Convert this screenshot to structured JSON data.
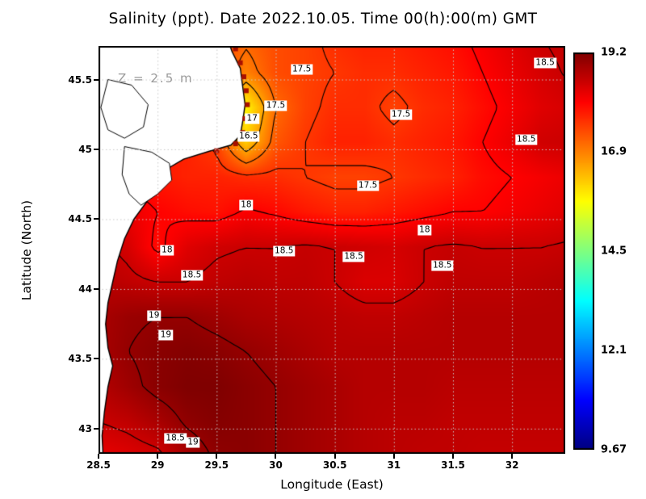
{
  "chart_data": {
    "type": "heatmap",
    "title": "Salinity (ppt). Date 2022.10.05. Time 00(h):00(m) GMT",
    "units": "ppt",
    "annotation": "Z = 2.5 m",
    "xlabel": "Longitude (East)",
    "ylabel": "Latitude (North)",
    "x_ticks": [
      28.5,
      29,
      29.5,
      30,
      30.5,
      31,
      31.5,
      32
    ],
    "y_ticks": [
      43,
      43.5,
      44,
      44.5,
      45,
      45.5
    ],
    "x_range": [
      28.5,
      32.45
    ],
    "y_range": [
      42.82,
      45.74
    ],
    "grid_on": true,
    "colorbar": {
      "min": 9.67,
      "max": 19.2,
      "labels": [
        "19.2",
        "16.9",
        "14.5",
        "12.1",
        "9.67"
      ],
      "colormap": "jet"
    },
    "lon": [
      28.5,
      28.75,
      29.0,
      29.25,
      29.5,
      29.75,
      30.0,
      30.25,
      30.5,
      30.75,
      31.0,
      31.25,
      31.5,
      31.75,
      32.0,
      32.25,
      32.5
    ],
    "lat": [
      45.8,
      45.55,
      45.3,
      45.05,
      44.8,
      44.55,
      44.3,
      44.05,
      43.8,
      43.55,
      43.3,
      43.05,
      42.8
    ],
    "salinity": [
      [
        17.6,
        17.6,
        17.6,
        17.5,
        17.4,
        17.1,
        17.3,
        17.4,
        17.6,
        17.7,
        17.7,
        17.8,
        17.9,
        18.1,
        18.3,
        18.5,
        18.6
      ],
      [
        17.6,
        17.6,
        17.6,
        17.5,
        17.3,
        16.8,
        17.3,
        17.4,
        17.5,
        17.6,
        17.6,
        17.7,
        17.8,
        18.0,
        18.2,
        18.4,
        18.55
      ],
      [
        17.7,
        17.7,
        17.7,
        17.6,
        17.2,
        15.7,
        17.0,
        17.4,
        17.6,
        17.6,
        17.4,
        17.6,
        17.7,
        17.9,
        18.1,
        18.3,
        18.4
      ],
      [
        17.8,
        17.8,
        17.8,
        17.7,
        17.4,
        16.1,
        17.2,
        17.5,
        17.7,
        17.7,
        17.6,
        17.7,
        17.8,
        18.0,
        18.2,
        18.45,
        18.5
      ],
      [
        18.0,
        17.9,
        17.8,
        17.7,
        17.7,
        17.6,
        17.6,
        17.5,
        17.4,
        17.4,
        17.5,
        17.6,
        17.7,
        17.9,
        18.0,
        18.1,
        18.2
      ],
      [
        18.3,
        18.2,
        18.0,
        17.9,
        17.85,
        18.05,
        17.95,
        17.8,
        17.7,
        17.7,
        17.8,
        17.9,
        18.0,
        18.0,
        18.1,
        18.2,
        18.3
      ],
      [
        18.6,
        18.4,
        17.9,
        18.3,
        18.45,
        18.5,
        18.5,
        18.55,
        18.5,
        18.45,
        18.4,
        18.5,
        18.55,
        18.5,
        18.5,
        18.5,
        18.55
      ],
      [
        18.7,
        18.6,
        18.5,
        18.5,
        18.6,
        18.65,
        18.6,
        18.6,
        18.5,
        18.35,
        18.35,
        18.5,
        18.6,
        18.6,
        18.6,
        18.65,
        18.7
      ],
      [
        18.8,
        18.95,
        19.0,
        19.0,
        18.9,
        18.8,
        18.75,
        18.7,
        18.65,
        18.6,
        18.6,
        18.65,
        18.7,
        18.7,
        18.7,
        18.7,
        18.7
      ],
      [
        18.8,
        19.0,
        19.1,
        19.15,
        19.1,
        19.0,
        18.9,
        18.8,
        18.7,
        18.7,
        18.7,
        18.7,
        18.7,
        18.7,
        18.7,
        18.7,
        18.7
      ],
      [
        18.7,
        18.9,
        19.1,
        19.2,
        19.2,
        19.1,
        19.0,
        18.9,
        18.8,
        18.7,
        18.7,
        18.7,
        18.65,
        18.65,
        18.65,
        18.65,
        18.65
      ],
      [
        18.5,
        18.6,
        18.8,
        19.05,
        19.15,
        19.1,
        19.0,
        18.9,
        18.8,
        18.7,
        18.65,
        18.65,
        18.6,
        18.6,
        18.6,
        18.6,
        18.6
      ],
      [
        18.2,
        18.3,
        18.4,
        18.8,
        19.05,
        19.1,
        19.0,
        18.9,
        18.8,
        18.7,
        18.65,
        18.6,
        18.6,
        18.55,
        18.55,
        18.55,
        18.55
      ]
    ],
    "contour_levels": [
      16.5,
      17,
      17.5,
      18,
      18.5,
      19
    ],
    "contour_labels": [
      {
        "lon": 30.22,
        "lat": 45.57,
        "text": "17.5"
      },
      {
        "lon": 32.28,
        "lat": 45.62,
        "text": "18.5"
      },
      {
        "lon": 30.0,
        "lat": 45.31,
        "text": "17.5"
      },
      {
        "lon": 29.8,
        "lat": 45.22,
        "text": "17"
      },
      {
        "lon": 31.06,
        "lat": 45.25,
        "text": "17.5"
      },
      {
        "lon": 29.77,
        "lat": 45.09,
        "text": "16.5"
      },
      {
        "lon": 32.12,
        "lat": 45.07,
        "text": "18.5"
      },
      {
        "lon": 30.78,
        "lat": 44.74,
        "text": "17.5"
      },
      {
        "lon": 29.75,
        "lat": 44.6,
        "text": "18"
      },
      {
        "lon": 31.26,
        "lat": 44.42,
        "text": "18"
      },
      {
        "lon": 29.08,
        "lat": 44.28,
        "text": "18"
      },
      {
        "lon": 30.07,
        "lat": 44.27,
        "text": "18.5"
      },
      {
        "lon": 30.66,
        "lat": 44.23,
        "text": "18.5"
      },
      {
        "lon": 31.41,
        "lat": 44.17,
        "text": "18.5"
      },
      {
        "lon": 29.29,
        "lat": 44.1,
        "text": "18.5"
      },
      {
        "lon": 28.97,
        "lat": 43.81,
        "text": "19"
      },
      {
        "lon": 29.07,
        "lat": 43.67,
        "text": "19"
      },
      {
        "lon": 29.15,
        "lat": 42.93,
        "text": "18.5"
      },
      {
        "lon": 29.3,
        "lat": 42.9,
        "text": "19"
      }
    ],
    "coastline": [
      [
        29.58,
        45.82
      ],
      [
        29.63,
        45.7
      ],
      [
        29.7,
        45.58
      ],
      [
        29.72,
        45.45
      ],
      [
        29.74,
        45.32
      ],
      [
        29.72,
        45.2
      ],
      [
        29.7,
        45.1
      ],
      [
        29.62,
        45.03
      ],
      [
        29.45,
        44.99
      ],
      [
        29.22,
        44.93
      ],
      [
        29.1,
        44.87
      ],
      [
        29.03,
        44.76
      ],
      [
        28.93,
        44.65
      ],
      [
        28.8,
        44.5
      ],
      [
        28.72,
        44.36
      ],
      [
        28.66,
        44.2
      ],
      [
        28.62,
        44.05
      ],
      [
        28.58,
        43.9
      ],
      [
        28.56,
        43.75
      ],
      [
        28.58,
        43.58
      ],
      [
        28.62,
        43.45
      ],
      [
        28.58,
        43.3
      ],
      [
        28.55,
        43.12
      ],
      [
        28.53,
        42.95
      ],
      [
        28.54,
        42.78
      ]
    ],
    "lakes": [
      [
        [
          28.58,
          45.5
        ],
        [
          28.78,
          45.46
        ],
        [
          28.92,
          45.32
        ],
        [
          28.88,
          45.16
        ],
        [
          28.72,
          45.08
        ],
        [
          28.58,
          45.14
        ],
        [
          28.52,
          45.3
        ]
      ],
      [
        [
          28.72,
          45.02
        ],
        [
          28.95,
          44.98
        ],
        [
          29.1,
          44.9
        ],
        [
          29.12,
          44.78
        ],
        [
          29.0,
          44.68
        ],
        [
          28.86,
          44.6
        ],
        [
          28.76,
          44.68
        ],
        [
          28.7,
          44.82
        ]
      ]
    ],
    "delta_cells": [
      [
        29.66,
        45.72
      ],
      [
        29.7,
        45.62
      ],
      [
        29.73,
        45.52
      ],
      [
        29.75,
        45.42
      ],
      [
        29.76,
        45.32
      ],
      [
        29.74,
        45.22
      ],
      [
        29.72,
        45.12
      ],
      [
        29.66,
        45.04
      ],
      [
        29.5,
        44.99
      ]
    ],
    "colors": {
      "land_fill": "#ffffff",
      "coast_stroke": "#000000",
      "contour_stroke": "#000000",
      "grid_dots": "#c9c9c9",
      "delta_cell": "#a81000",
      "annotation_gray": "#9a9a9a"
    }
  }
}
